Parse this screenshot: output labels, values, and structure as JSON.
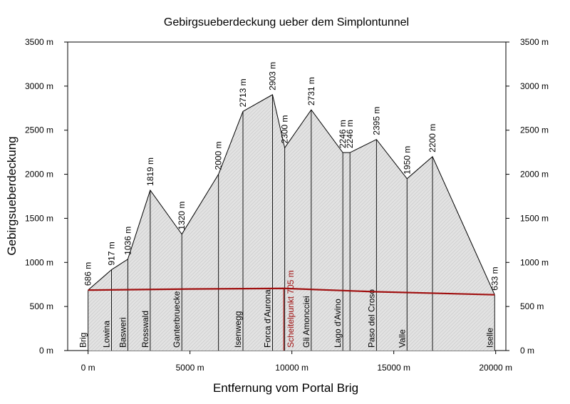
{
  "chart_data": {
    "type": "area",
    "title": "Gebirgsueberdeckung ueber dem Simplontunnel",
    "xlabel": "Entfernung vom Portal Brig",
    "ylabel": "Gebirgsueberdeckung",
    "xlim": [
      -1000,
      20500
    ],
    "ylim": [
      0,
      3500
    ],
    "x_ticks": [
      0,
      5000,
      10000,
      15000,
      20000
    ],
    "x_tick_labels": [
      "0 m",
      "5000 m",
      "10000 m",
      "15000 m",
      "20000 m"
    ],
    "y_ticks": [
      0,
      500,
      1000,
      1500,
      2000,
      2500,
      3000,
      3500
    ],
    "y_tick_labels": [
      "0 m",
      "500 m",
      "1000 m",
      "1500 m",
      "2000 m",
      "2500 m",
      "3000 m",
      "3500 m"
    ],
    "profile": [
      {
        "x": 0,
        "y": 686,
        "label": "686 m"
      },
      {
        "x": 1150,
        "y": 917,
        "label": "917 m"
      },
      {
        "x": 1950,
        "y": 1036,
        "label": "1036 m"
      },
      {
        "x": 3050,
        "y": 1819,
        "label": "1819 m"
      },
      {
        "x": 4600,
        "y": 1320,
        "label": "1320 m"
      },
      {
        "x": 6400,
        "y": 2000,
        "label": "2000 m"
      },
      {
        "x": 7600,
        "y": 2713,
        "label": "2713 m"
      },
      {
        "x": 9050,
        "y": 2903,
        "label": "2903 m"
      },
      {
        "x": 9650,
        "y": 2300,
        "label": "2300 m"
      },
      {
        "x": 10950,
        "y": 2731,
        "label": "2731 m"
      },
      {
        "x": 12500,
        "y": 2246,
        "label": "2246 m"
      },
      {
        "x": 12850,
        "y": 2246,
        "label": "2246 m"
      },
      {
        "x": 14150,
        "y": 2395,
        "label": "2395 m"
      },
      {
        "x": 15650,
        "y": 1950,
        "label": "1950 m"
      },
      {
        "x": 16900,
        "y": 2200,
        "label": "2200 m"
      },
      {
        "x": 19950,
        "y": 633,
        "label": "633 m"
      }
    ],
    "tunnel_level": [
      {
        "x": 0,
        "y": 686
      },
      {
        "x": 5000,
        "y": 698
      },
      {
        "x": 9600,
        "y": 705
      },
      {
        "x": 14000,
        "y": 668
      },
      {
        "x": 19950,
        "y": 633
      }
    ],
    "locations": [
      {
        "x": 0,
        "name": "Brig"
      },
      {
        "x": 1150,
        "name": "Lowina"
      },
      {
        "x": 1950,
        "name": "Basweri"
      },
      {
        "x": 3050,
        "name": "Rosswald"
      },
      {
        "x": 4600,
        "name": "Ganterbruecke"
      },
      {
        "x": 7600,
        "name": "Isenwegg"
      },
      {
        "x": 9050,
        "name": "Forca d'Aurona"
      },
      {
        "x": 10950,
        "name": "Gli Amoncciei"
      },
      {
        "x": 12500,
        "name": "Lago d'Avino"
      },
      {
        "x": 14150,
        "name": "Paso del Croso"
      },
      {
        "x": 15650,
        "name": "Valle"
      },
      {
        "x": 19950,
        "name": "Iselle"
      }
    ],
    "apex": {
      "x": 9600,
      "label": "Scheitelpunkt 705 m"
    },
    "colors": {
      "fill": "#e2e2e2",
      "outline": "#000000",
      "tunnel": "#a01010"
    }
  }
}
